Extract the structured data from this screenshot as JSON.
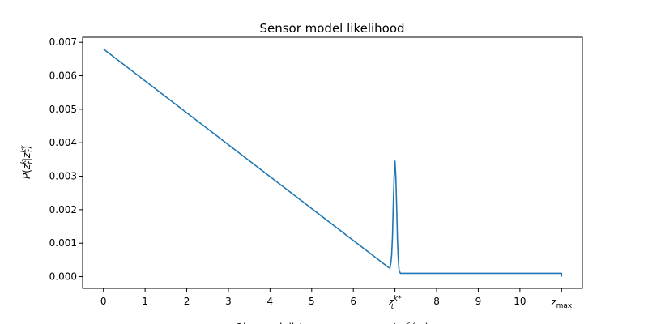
{
  "chart_data": {
    "type": "line",
    "title": "Sensor model likelihood",
    "ylabel": "P(z_t^k|z_t^k*)",
    "xlabel": "Observed distance measurement z_t^k (m)",
    "xlim": [
      -0.5,
      11.5
    ],
    "ylim": [
      -0.00035,
      0.00715
    ],
    "x_ticks": [
      0,
      1,
      2,
      3,
      4,
      5,
      6,
      7,
      8,
      9,
      10,
      11
    ],
    "x_tick_labels": [
      "0",
      "1",
      "2",
      "3",
      "4",
      "5",
      "6",
      "",
      "8",
      "9",
      "10",
      ""
    ],
    "special_x_ticks": [
      {
        "x": 7,
        "label_main": "z",
        "label_sub": "t",
        "label_sup": "k*"
      },
      {
        "x": 11,
        "label_main": "z",
        "label_sub": "max",
        "label_sup": ""
      }
    ],
    "y_ticks": [
      0.0,
      0.001,
      0.002,
      0.003,
      0.004,
      0.005,
      0.006,
      0.007
    ],
    "y_tick_labels": [
      "0.000",
      "0.001",
      "0.002",
      "0.003",
      "0.004",
      "0.005",
      "0.006",
      "0.007"
    ],
    "grid": false,
    "series": [
      {
        "color": "#1f77b4",
        "points": [
          [
            0,
            0.0068
          ],
          [
            6.85,
            0.00027
          ],
          [
            6.88,
            0.00026
          ],
          [
            6.9,
            0.0004
          ],
          [
            6.92,
            0.00065
          ],
          [
            6.94,
            0.0012
          ],
          [
            6.96,
            0.0022
          ],
          [
            6.98,
            0.003
          ],
          [
            7.0,
            0.00345
          ],
          [
            7.02,
            0.003
          ],
          [
            7.04,
            0.0021
          ],
          [
            7.06,
            0.0011
          ],
          [
            7.08,
            0.0005
          ],
          [
            7.1,
            0.00018
          ],
          [
            7.13,
            0.0001
          ],
          [
            7.2,
            0.0001
          ],
          [
            11,
            0.0001
          ],
          [
            11.0001,
            0.0
          ]
        ]
      }
    ]
  }
}
